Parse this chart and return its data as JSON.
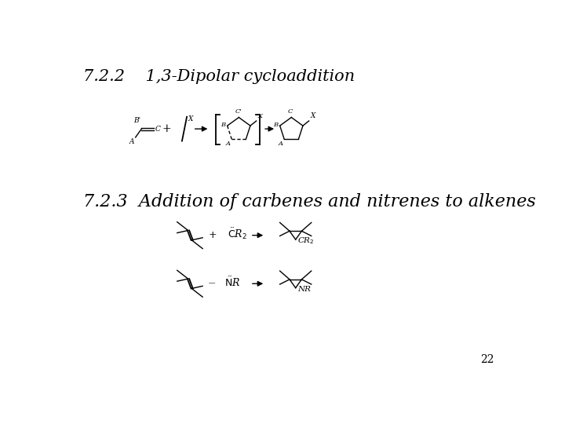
{
  "title1": "7.2.2    1,3-Dipolar cycloaddition",
  "title2": "7.2.3  Addition of carbenes and nitrenes to alkenes",
  "page_number": "22",
  "bg_color": "#ffffff",
  "text_color": "#000000",
  "title1_fontsize": 15,
  "title2_fontsize": 16,
  "page_num_fontsize": 10
}
